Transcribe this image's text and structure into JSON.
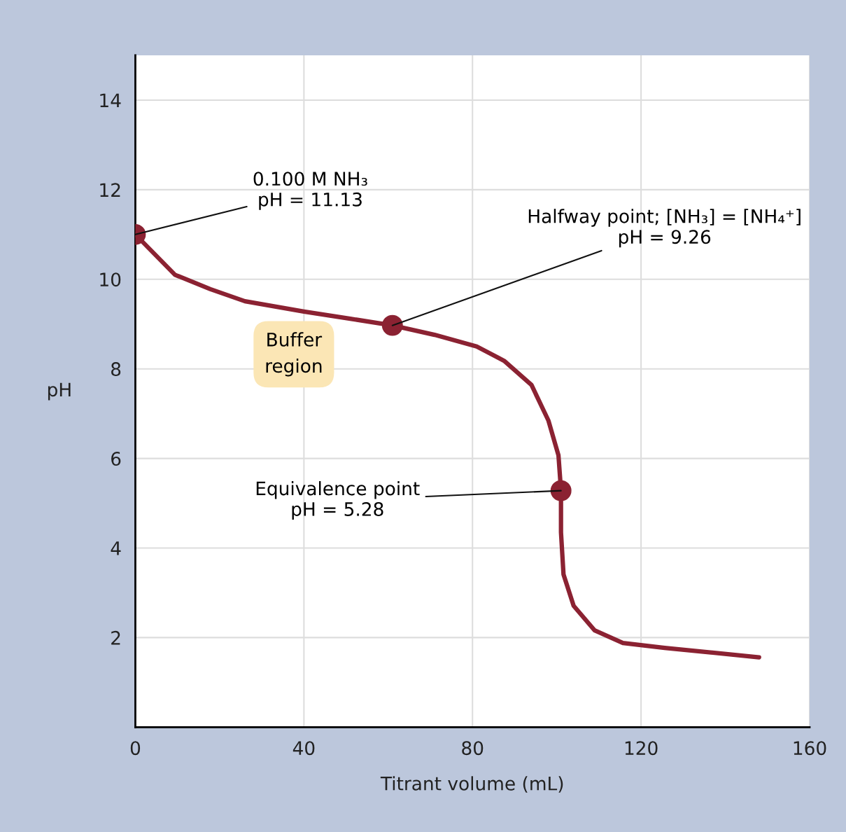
{
  "chart_data": {
    "type": "line",
    "xlabel": "Titrant volume (mL)",
    "ylabel": "pH",
    "xlim": [
      0,
      160
    ],
    "xticks": [
      0,
      40,
      80,
      120,
      160
    ],
    "ylim": [
      0,
      15
    ],
    "yticks": [
      2,
      4,
      6,
      8,
      10,
      12,
      14
    ],
    "grid": true,
    "series": [
      {
        "color": "#8b2232",
        "marker": "none",
        "x": [
          0,
          9.4,
          17.8,
          26,
          40,
          51,
          61,
          71,
          81,
          87.5,
          94,
          98,
          100.4,
          101,
          101,
          101.6,
          104,
          109,
          115.7,
          125.6,
          148
        ],
        "values": [
          11.0,
          10.1,
          9.78,
          9.51,
          9.28,
          9.12,
          8.97,
          8.76,
          8.5,
          8.18,
          7.64,
          6.85,
          6.07,
          5.29,
          4.35,
          3.41,
          2.71,
          2.16,
          1.88,
          1.77,
          1.56
        ]
      },
      {
        "type": "scatter",
        "color": "#8b2232",
        "marker": "circle",
        "x": [
          0,
          61,
          101
        ],
        "values": [
          11.0,
          8.97,
          5.28
        ]
      }
    ],
    "annotations": [
      {
        "text": "0.100 M NH₃\npH = 11.13",
        "x": 0,
        "y": 11.0
      },
      {
        "text": "Halfway point; [NH₃] = [NH₄⁺]\npH = 9.26",
        "x": 61,
        "y": 8.97
      },
      {
        "text": "Equivalence point\npH = 5.28",
        "x": 101,
        "y": 5.28
      },
      "Buffer region"
    ]
  }
}
